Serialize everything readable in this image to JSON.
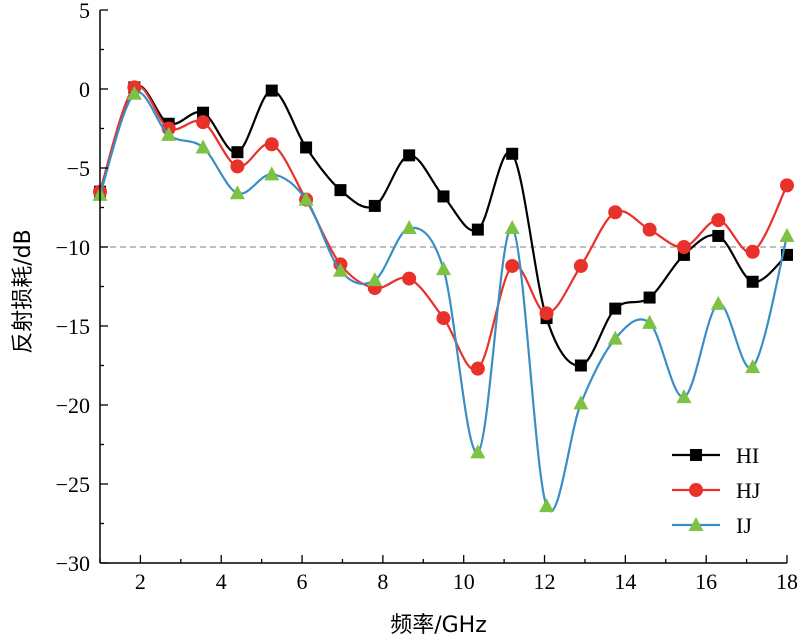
{
  "chart_data": {
    "type": "line",
    "xlabel": "频率/GHz",
    "ylabel": "反射损耗/dB",
    "xlim": [
      1,
      18
    ],
    "ylim": [
      -30,
      5
    ],
    "xticks": [
      "2",
      "4",
      "6",
      "8",
      "10",
      "12",
      "14",
      "16",
      "18"
    ],
    "yticks": [
      "5",
      "0",
      "−5",
      "−10",
      "−15",
      "−20",
      "−25",
      "−30"
    ],
    "reference_line": {
      "y": -10,
      "style": "dashed",
      "color": "#999999"
    },
    "legend_position": "bottom-right",
    "series": [
      {
        "name": "HI",
        "color": "#000000",
        "marker": "square",
        "x": [
          1.0,
          1.85,
          2.7,
          3.55,
          4.4,
          5.25,
          6.1,
          6.95,
          7.8,
          8.65,
          9.5,
          10.35,
          11.2,
          12.05,
          12.9,
          13.75,
          14.6,
          15.45,
          16.3,
          17.15,
          18.0
        ],
        "y": [
          -6.5,
          0.1,
          -2.2,
          -1.5,
          -4.0,
          -0.1,
          -3.7,
          -6.4,
          -7.4,
          -4.2,
          -6.8,
          -8.9,
          -4.1,
          -14.5,
          -17.5,
          -13.9,
          -13.2,
          -10.5,
          -9.3,
          -12.2,
          -10.5
        ]
      },
      {
        "name": "HJ",
        "color": "#e8312a",
        "marker": "circle",
        "x": [
          1.0,
          1.85,
          2.7,
          3.55,
          4.4,
          5.25,
          6.1,
          6.95,
          7.8,
          8.65,
          9.5,
          10.35,
          11.2,
          12.05,
          12.9,
          13.75,
          14.6,
          15.45,
          16.3,
          17.15,
          18.0
        ],
        "y": [
          -6.5,
          0.1,
          -2.5,
          -2.1,
          -4.9,
          -3.5,
          -7.0,
          -11.1,
          -12.6,
          -12.0,
          -14.5,
          -17.7,
          -11.2,
          -14.2,
          -11.2,
          -7.8,
          -8.9,
          -10.0,
          -8.3,
          -10.3,
          -6.1
        ]
      },
      {
        "name": "IJ",
        "color": "#3a8ec4",
        "marker": "triangle",
        "marker_color": "#7dc242",
        "x": [
          1.0,
          1.85,
          2.7,
          3.55,
          4.4,
          5.25,
          6.1,
          6.95,
          7.8,
          8.65,
          9.5,
          10.35,
          11.2,
          12.05,
          12.9,
          13.75,
          14.6,
          15.45,
          16.3,
          17.15,
          18.0
        ],
        "y": [
          -6.7,
          -0.3,
          -2.9,
          -3.7,
          -6.6,
          -5.4,
          -7.0,
          -11.5,
          -12.1,
          -8.8,
          -11.4,
          -23.0,
          -8.8,
          -26.4,
          -19.9,
          -15.8,
          -14.8,
          -19.5,
          -13.6,
          -17.6,
          -9.3
        ]
      }
    ]
  }
}
